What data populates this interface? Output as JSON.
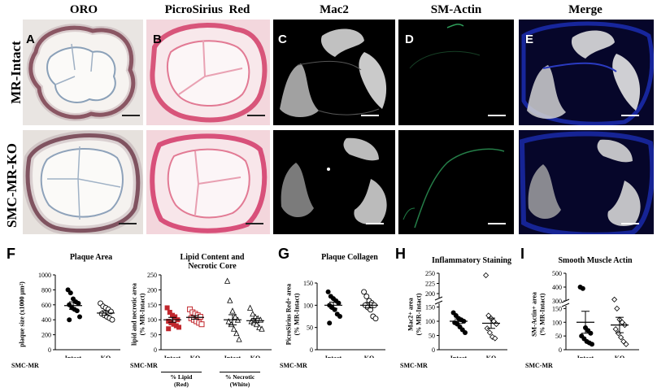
{
  "columns": [
    "ORO",
    "PicroSirius  Red",
    "Mac2",
    "SM-Actin",
    "Merge"
  ],
  "rows": [
    "MR-Intact",
    "SMC-MR-KO"
  ],
  "image_panels": [
    "A",
    "B",
    "C",
    "D",
    "E"
  ],
  "colors": {
    "oro_bg": "#e7e2de",
    "psr_bg": "#f4d9df",
    "mac2_bg": "#000000",
    "sma_bg": "#000000",
    "merge_bg": "#07072a",
    "red_marker": "#c1272d",
    "dapi": "#1a2aa8",
    "sma_green": "#2e9e5a"
  },
  "panels": {
    "F": {
      "letter": "F",
      "plaque_area": {
        "title": "Plaque Area",
        "ylabel_line1": "plaque size (x1000 µm²)",
        "yticks": [
          "1000",
          "800",
          "600",
          "400",
          "200",
          "0"
        ],
        "x_row_label": "SMC-MR",
        "chart_data": {
          "type": "scatter",
          "ylim": [
            0,
            1000
          ],
          "categories": [
            "Intact",
            "KO"
          ],
          "series": [
            {
              "values": [
                800,
                760,
                680,
                640,
                620,
                600,
                560,
                540,
                520,
                440,
                400
              ],
              "mean": 590,
              "sem": 50,
              "marker": "filled-circle"
            },
            {
              "values": [
                620,
                580,
                560,
                540,
                510,
                480,
                460,
                440,
                420,
                400
              ],
              "mean": 490,
              "sem": 30,
              "marker": "open-circle"
            }
          ]
        }
      },
      "lipid": {
        "title_line1": "Lipid Content and",
        "title_line2": "Necrotic Core",
        "ylabel_line1": "lipid and necrotic area",
        "ylabel_line2": "(% MR-Intact)",
        "yticks": [
          "250",
          "200",
          "150",
          "100",
          "50",
          "0"
        ],
        "x_row_label": "SMC-MR",
        "group1_line1": "% Lipid",
        "group1_line2": "(Red)",
        "group2_line1": "% Necrotic",
        "group2_line2": "(White)",
        "chart_data": {
          "type": "scatter",
          "ylim": [
            0,
            250
          ],
          "categories": [
            "Intact",
            "KO",
            "Intact",
            "KO"
          ],
          "series": [
            {
              "values": [
                140,
                125,
                115,
                110,
                100,
                95,
                90,
                85,
                80,
                75,
                70
              ],
              "mean": 100,
              "sem": 8,
              "marker": "filled-square"
            },
            {
              "values": [
                135,
                125,
                120,
                115,
                110,
                105,
                100,
                95,
                90,
                85
              ],
              "mean": 108,
              "sem": 6,
              "marker": "open-square"
            },
            {
              "values": [
                230,
                165,
                130,
                110,
                100,
                95,
                85,
                70,
                55,
                35
              ],
              "mean": 100,
              "sem": 17,
              "marker": "open-triangle"
            },
            {
              "values": [
                140,
                120,
                110,
                105,
                100,
                95,
                90,
                85,
                75,
                70
              ],
              "mean": 97,
              "sem": 7,
              "marker": "open-triangle"
            }
          ]
        }
      }
    },
    "G": {
      "letter": "G",
      "title": "Plaque Collagen",
      "ylabel_line1": "PicroSirius Red+ area",
      "ylabel_line2": "(% MR-Intact)",
      "yticks": [
        "150",
        "100",
        "50",
        "0"
      ],
      "x_row_label": "SMC-MR",
      "chart_data": {
        "type": "scatter",
        "ylim": [
          0,
          150
        ],
        "categories": [
          "Intact",
          "KO"
        ],
        "series": [
          {
            "values": [
              130,
              120,
              115,
              110,
              105,
              100,
              95,
              90,
              80,
              75,
              60
            ],
            "mean": 100,
            "sem": 7,
            "marker": "filled-circle"
          },
          {
            "values": [
              130,
              120,
              110,
              105,
              100,
              100,
              95,
              90,
              75,
              70
            ],
            "mean": 100,
            "sem": 6,
            "marker": "open-circle"
          }
        ]
      }
    },
    "H": {
      "letter": "H",
      "title": "Inflammatory Staining",
      "ylabel_line1": "Mac2+ area",
      "ylabel_line2": "(% MR-Intact)",
      "yticks_upper": [
        "250",
        "225",
        "200"
      ],
      "yticks_lower": [
        "150",
        "100",
        "50",
        "0"
      ],
      "x_row_label": "SMC-MR",
      "chart_data": {
        "type": "scatter",
        "ylim": [
          0,
          250
        ],
        "axis_break": [
          160,
          190
        ],
        "categories": [
          "Intact",
          "KO"
        ],
        "series": [
          {
            "values": [
              130,
              120,
              110,
              105,
              100,
              95,
              90,
              80,
              70,
              60
            ],
            "mean": 100,
            "sem": 8,
            "marker": "filled-circle"
          },
          {
            "values": [
              245,
              120,
              110,
              100,
              90,
              75,
              60,
              45,
              40
            ],
            "mean": 93,
            "sem": 18,
            "marker": "open-diamond"
          }
        ]
      }
    },
    "I": {
      "letter": "I",
      "title": "Smooth Muscle Actin",
      "ylabel_line1": "SM-Actin+ area",
      "ylabel_line2": "(% MR-Intact)",
      "yticks_upper": [
        "500",
        "400"
      ],
      "yticks_lower": [
        "300",
        "150",
        "100",
        "50",
        "0"
      ],
      "x_row_label": "SMC-MR",
      "chart_data": {
        "type": "scatter",
        "ylim": [
          0,
          500
        ],
        "axis_break": [
          160,
          350
        ],
        "categories": [
          "Intact",
          "KO"
        ],
        "series": [
          {
            "values": [
              400,
              390,
              80,
              70,
              60,
              50,
              40,
              30,
              25,
              20
            ],
            "mean": 100,
            "sem": 40,
            "marker": "filled-circle"
          },
          {
            "values": [
              310,
              150,
              110,
              100,
              90,
              75,
              60,
              45,
              30,
              20
            ],
            "mean": 90,
            "sem": 28,
            "marker": "open-diamond"
          }
        ]
      }
    }
  }
}
